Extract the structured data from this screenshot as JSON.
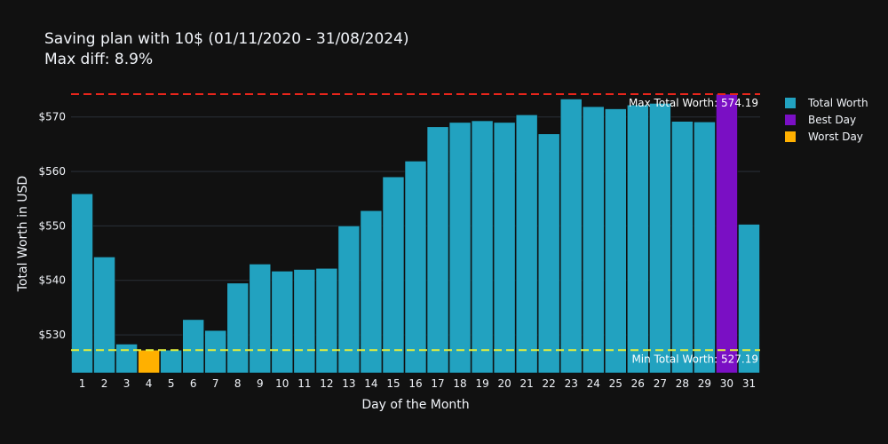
{
  "chart_data": {
    "type": "bar",
    "title": "Saving plan with 10$ (01/11/2020 - 31/08/2024)",
    "subtitle": "Max diff: 8.9%",
    "xlabel": "Day of the Month",
    "ylabel": "Total Worth in USD",
    "ylim": [
      523,
      575.5
    ],
    "yticks": [
      530,
      540,
      550,
      560,
      570
    ],
    "ytick_labels": [
      "$530",
      "$540",
      "$550",
      "$560",
      "$570"
    ],
    "grid": true,
    "legend_position": "top-right",
    "categories": [
      "1",
      "2",
      "3",
      "4",
      "5",
      "6",
      "7",
      "8",
      "9",
      "10",
      "11",
      "12",
      "13",
      "14",
      "15",
      "16",
      "17",
      "18",
      "19",
      "20",
      "21",
      "22",
      "23",
      "24",
      "25",
      "26",
      "27",
      "28",
      "29",
      "30",
      "31"
    ],
    "values": [
      555.9,
      544.3,
      528.3,
      527.19,
      527.2,
      532.8,
      530.8,
      539.5,
      543.0,
      541.7,
      542.0,
      542.2,
      550.0,
      552.8,
      559.0,
      561.9,
      568.2,
      569.0,
      569.3,
      569.0,
      570.4,
      566.9,
      573.3,
      571.9,
      571.5,
      572.2,
      572.5,
      569.2,
      569.1,
      574.19,
      550.3
    ],
    "best_day_index": 29,
    "worst_day_index": 3,
    "series": [
      {
        "name": "Total Worth",
        "color": "#22a2c0"
      },
      {
        "name": "Best Day",
        "color": "#7a0fc4"
      },
      {
        "name": "Worst Day",
        "color": "#ffb000"
      }
    ],
    "reference_lines": [
      {
        "value": 574.19,
        "label": "Max Total Worth: 574.19",
        "color": "#e8251b"
      },
      {
        "value": 527.19,
        "label": "Min Total Worth: 527.19",
        "color": "#e8f03a"
      }
    ]
  }
}
